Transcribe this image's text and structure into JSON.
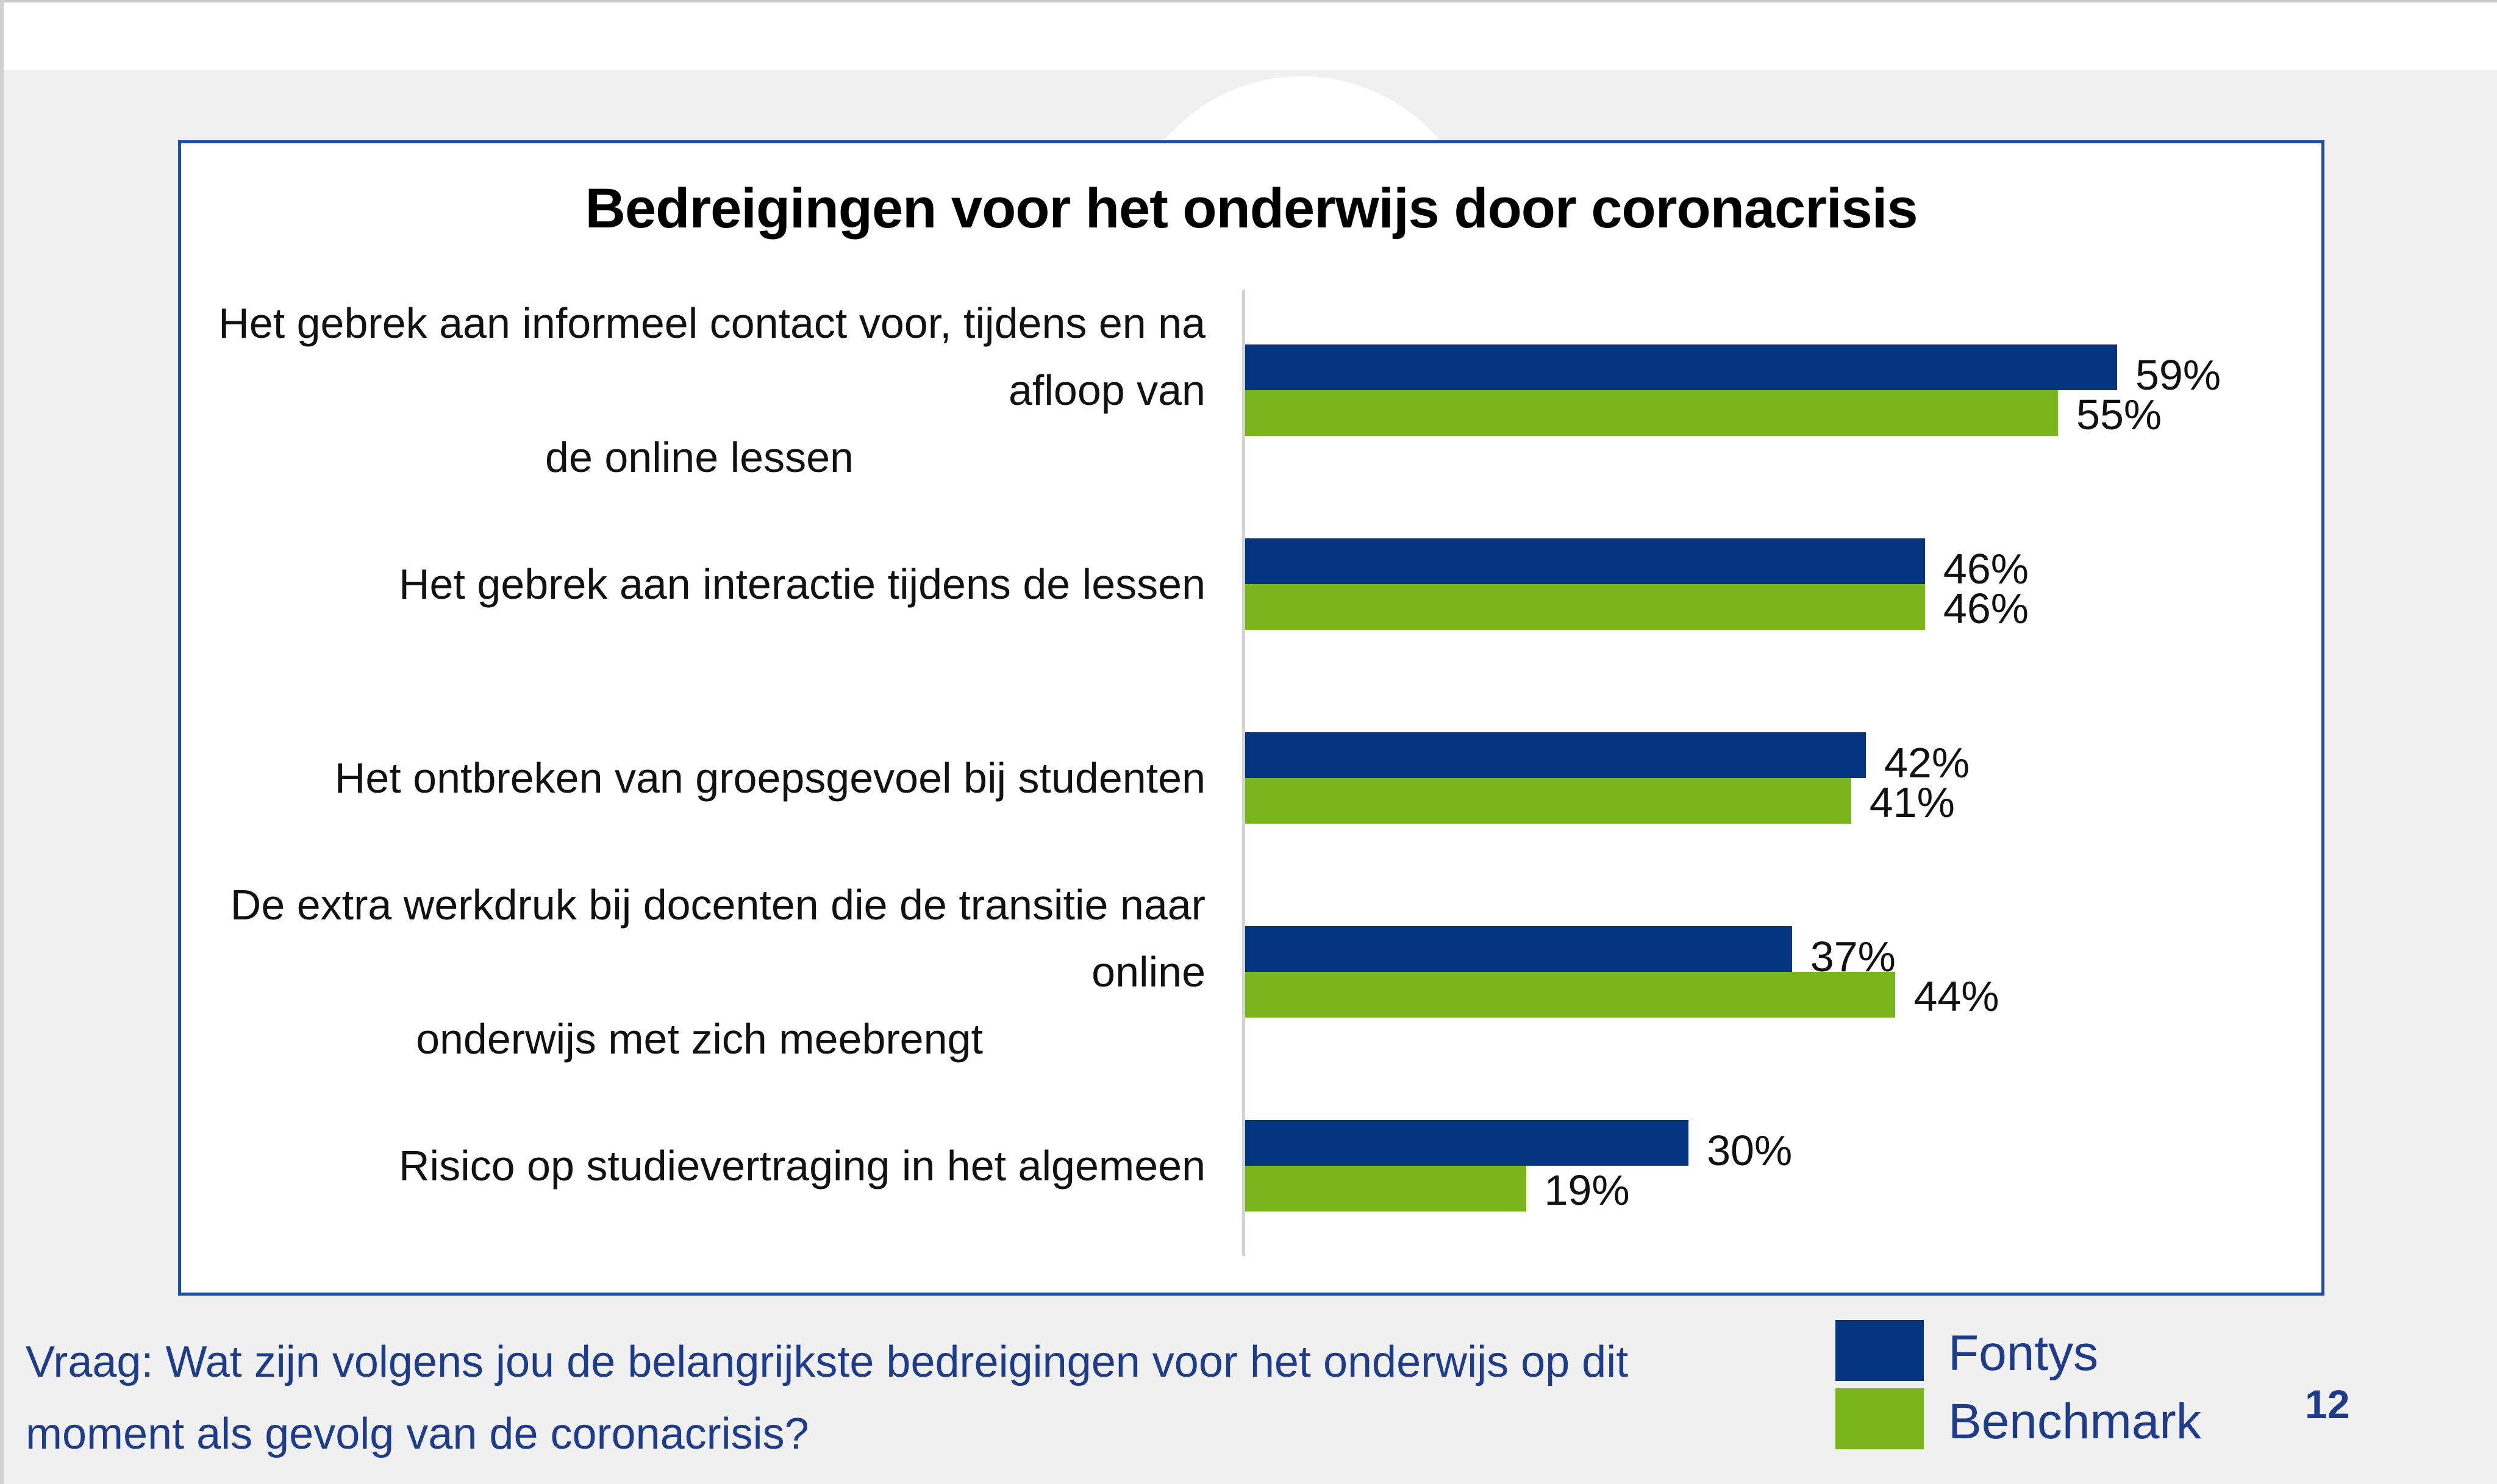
{
  "colors": {
    "fontys": "#06357f",
    "benchmark": "#7ab51d",
    "frame": "#1f4e9e"
  },
  "chart_data": {
    "type": "bar",
    "orientation": "horizontal",
    "title": "Bedreigingen voor het onderwijs door coronacrisis",
    "categories": [
      [
        "Het gebrek aan informeel contact voor, tijdens en na afloop van",
        "de online lessen"
      ],
      [
        "Het gebrek aan interactie tijdens de lessen"
      ],
      [
        "Het ontbreken van groepsgevoel bij studenten"
      ],
      [
        "De extra werkdruk bij docenten die de transitie naar online",
        "onderwijs met zich meebrengt"
      ],
      [
        "Risico op studievertraging in het algemeen"
      ]
    ],
    "series": [
      {
        "name": "Fontys",
        "values": [
          59,
          46,
          42,
          37,
          30
        ],
        "labels": [
          "59%",
          "46%",
          "42%",
          "37%",
          "30%"
        ]
      },
      {
        "name": "Benchmark",
        "values": [
          55,
          46,
          41,
          44,
          19
        ],
        "labels": [
          "55%",
          "46%",
          "41%",
          "44%",
          "19%"
        ]
      }
    ],
    "xlim": [
      0,
      100
    ],
    "grid": false,
    "legend": "bottom-right"
  },
  "footer": {
    "question": "Vraag: Wat zijn volgens jou de belangrijkste bedreigingen voor het onderwijs op dit moment als gevolg van de coronacrisis?",
    "page_number": "12"
  }
}
